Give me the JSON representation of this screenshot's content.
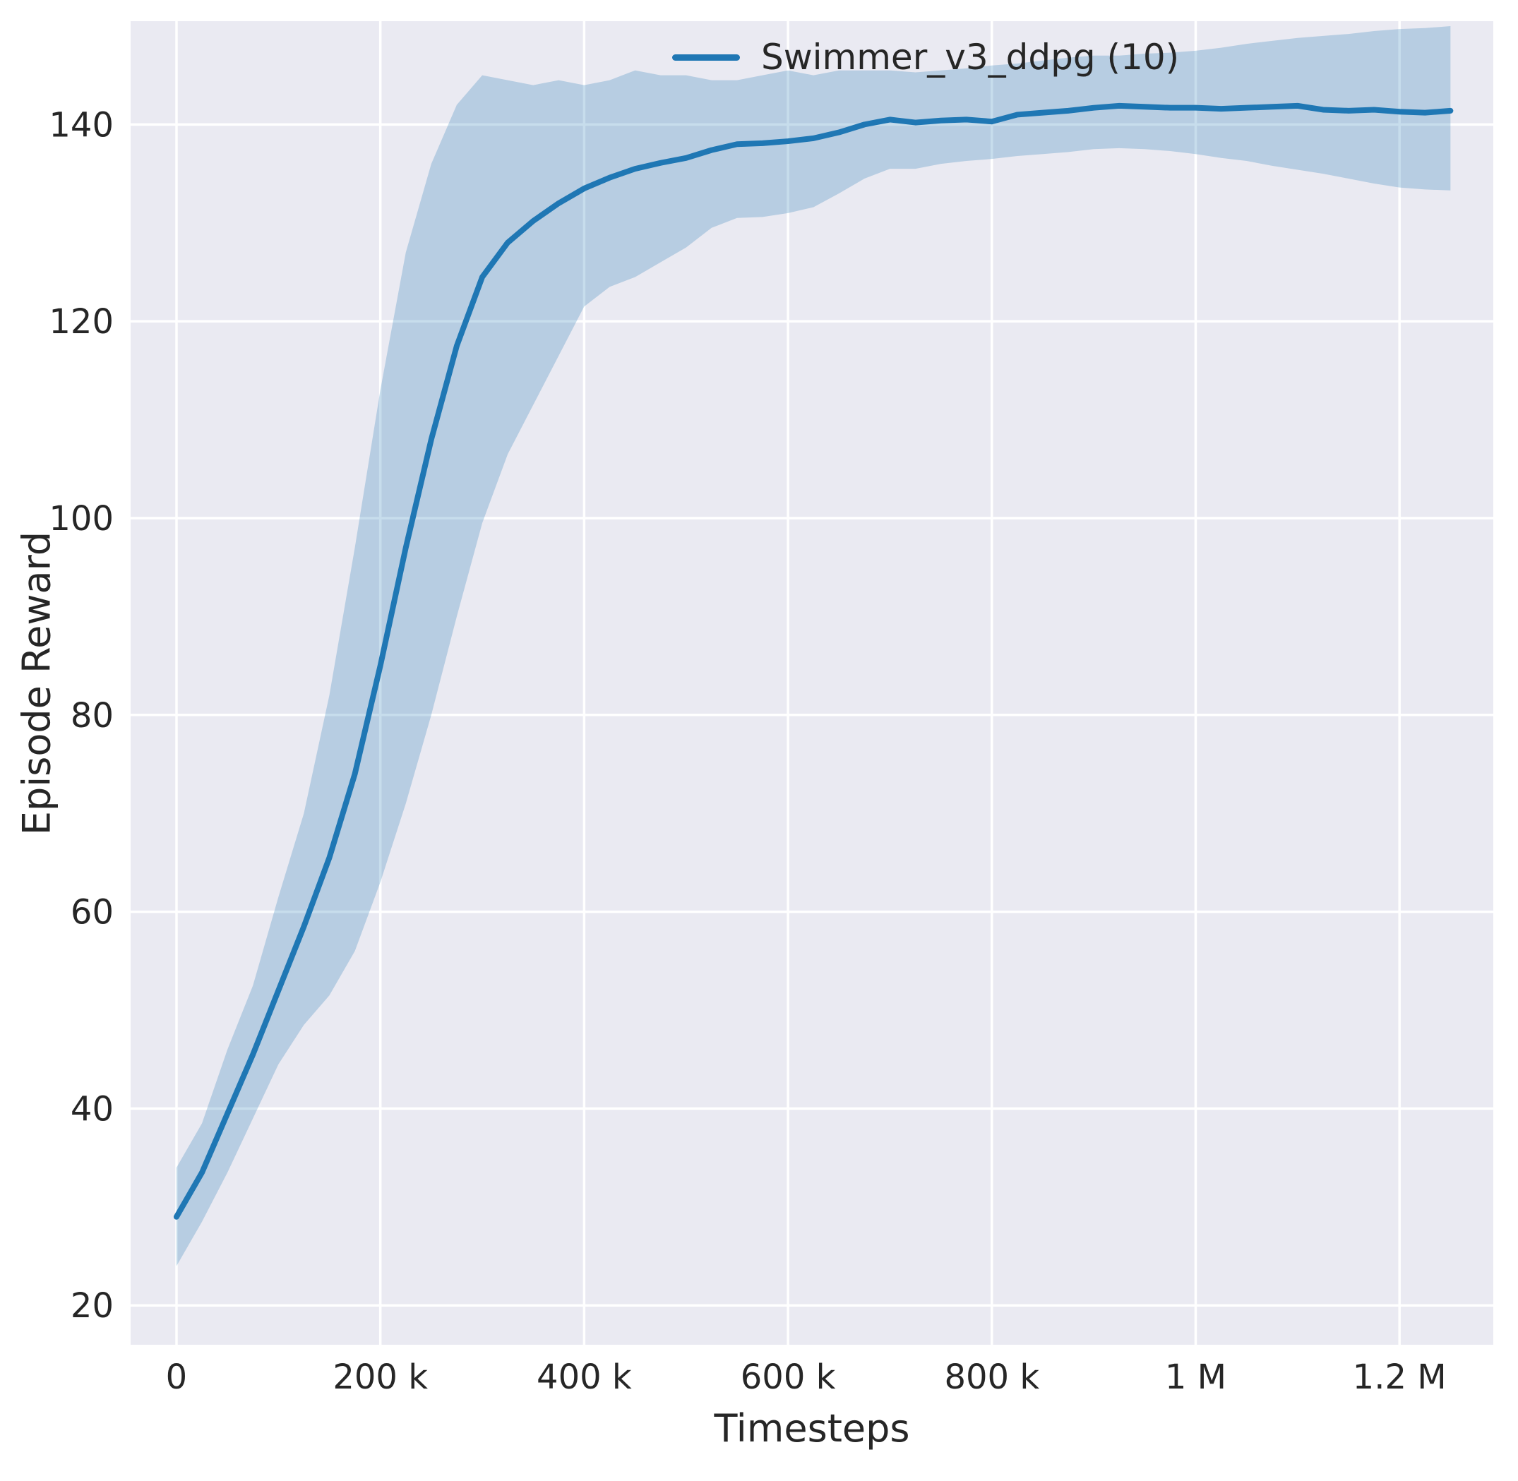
{
  "figure": {
    "background": "#ffffff",
    "axes_background": "#eaeaf2",
    "grid_color": "#ffffff",
    "tick_color": "#262626"
  },
  "chart_data": {
    "type": "line",
    "title": "",
    "xlabel": "Timesteps",
    "ylabel": "Episode Reward",
    "xlim": [
      -45000,
      1292000
    ],
    "ylim": [
      16,
      150.5
    ],
    "grid": true,
    "legend_position": "upper right (inside axes)",
    "x_ticks": [
      0,
      200000,
      400000,
      600000,
      800000,
      1000000,
      1200000
    ],
    "x_tick_labels": [
      "0",
      "200 k",
      "400 k",
      "600 k",
      "800 k",
      "1 M",
      "1.2 M"
    ],
    "y_ticks": [
      20,
      40,
      60,
      80,
      100,
      120,
      140
    ],
    "y_tick_labels": [
      "20",
      "40",
      "60",
      "80",
      "100",
      "120",
      "140"
    ],
    "series": [
      {
        "name": "Swimmer_v3_ddpg (10)",
        "color": "#1f77b4",
        "band_color": "rgba(31,119,180,0.25)",
        "x": [
          0,
          25000,
          50000,
          75000,
          100000,
          125000,
          150000,
          175000,
          200000,
          225000,
          250000,
          275000,
          300000,
          325000,
          350000,
          375000,
          400000,
          425000,
          450000,
          475000,
          500000,
          525000,
          550000,
          575000,
          600000,
          625000,
          650000,
          675000,
          700000,
          725000,
          750000,
          775000,
          800000,
          825000,
          850000,
          875000,
          900000,
          925000,
          950000,
          975000,
          1000000,
          1025000,
          1050000,
          1075000,
          1100000,
          1125000,
          1150000,
          1175000,
          1200000,
          1225000,
          1250000
        ],
        "mean": [
          29,
          33.5,
          39.5,
          45.5,
          52,
          58.5,
          65.5,
          74,
          85,
          97,
          108,
          117.5,
          124.5,
          128,
          130.2,
          132,
          133.5,
          134.6,
          135.5,
          136.1,
          136.6,
          137.4,
          138,
          138.1,
          138.3,
          138.6,
          139.2,
          140,
          140.5,
          140.2,
          140.4,
          140.5,
          140.3,
          141,
          141.2,
          141.4,
          141.7,
          141.9,
          141.8,
          141.7,
          141.7,
          141.6,
          141.7,
          141.8,
          141.9,
          141.5,
          141.4,
          141.5,
          141.3,
          141.2,
          141.4
        ],
        "lower": [
          24,
          28.5,
          33.5,
          39,
          44.5,
          48.5,
          51.5,
          56,
          63,
          71,
          80,
          90,
          99.5,
          106.5,
          111.5,
          116.5,
          121.5,
          123.5,
          124.5,
          126,
          127.5,
          129.5,
          130.5,
          130.6,
          131,
          131.6,
          133,
          134.5,
          135.5,
          135.5,
          136,
          136.3,
          136.5,
          136.8,
          137,
          137.2,
          137.5,
          137.6,
          137.5,
          137.3,
          137,
          136.6,
          136.3,
          135.8,
          135.4,
          135,
          134.5,
          134,
          133.6,
          133.4,
          133.3
        ],
        "upper": [
          34,
          38.5,
          46,
          52.5,
          61.5,
          70,
          82,
          97,
          113,
          127,
          136,
          142,
          145,
          144.5,
          144,
          144.5,
          144,
          144.5,
          145.5,
          145,
          145,
          144.5,
          144.5,
          145,
          145.5,
          145,
          145.5,
          145.5,
          145.5,
          145.3,
          145.5,
          145.7,
          146,
          146.2,
          146.5,
          146.8,
          147,
          147,
          147.2,
          147.3,
          147.5,
          147.8,
          148.2,
          148.5,
          148.8,
          149,
          149.2,
          149.5,
          149.7,
          149.8,
          150
        ]
      }
    ]
  }
}
